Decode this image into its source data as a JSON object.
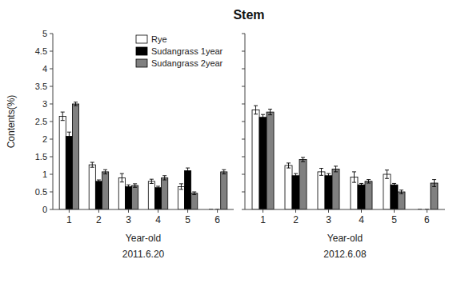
{
  "chart_data": [
    {
      "type": "bar",
      "title": "Stem",
      "ylabel": "Contents(%)",
      "xlabel": "Year-old",
      "annotations": [
        "2011.6.20"
      ],
      "categories": [
        "1",
        "2",
        "3",
        "4",
        "5",
        "6"
      ],
      "series": [
        {
          "name": "Rye",
          "color": "#ffffff",
          "values": [
            2.65,
            1.27,
            0.9,
            0.8,
            0.65,
            0.0
          ],
          "errors": [
            0.12,
            0.07,
            0.12,
            0.06,
            0.08,
            0.0
          ]
        },
        {
          "name": "Sudangrass 1year",
          "color": "#000000",
          "values": [
            2.08,
            0.8,
            0.65,
            0.62,
            1.1,
            0.0
          ],
          "errors": [
            0.12,
            0.04,
            0.05,
            0.04,
            0.08,
            0.0
          ]
        },
        {
          "name": "Sudangrass 2year",
          "color": "#808080",
          "values": [
            3.0,
            1.07,
            0.68,
            0.9,
            0.46,
            1.07
          ],
          "errors": [
            0.05,
            0.06,
            0.05,
            0.06,
            0.04,
            0.06
          ]
        }
      ],
      "ylim": [
        0,
        5
      ],
      "yticks": [
        0,
        0.5,
        1,
        1.5,
        2,
        2.5,
        3,
        3.5,
        4,
        4.5,
        5
      ],
      "legend": "upper right"
    },
    {
      "type": "bar",
      "xlabel": "Year-old",
      "annotations": [
        "2012.6.08"
      ],
      "categories": [
        "1",
        "2",
        "3",
        "4",
        "5",
        "6"
      ],
      "series": [
        {
          "color": "#ffffff",
          "values": [
            2.83,
            1.25,
            1.07,
            0.92,
            1.0,
            0.0
          ],
          "errors": [
            0.12,
            0.07,
            0.1,
            0.15,
            0.12,
            0.0
          ]
        },
        {
          "color": "#000000",
          "values": [
            2.62,
            0.96,
            0.96,
            0.7,
            0.7,
            0.0
          ],
          "errors": [
            0.08,
            0.06,
            0.06,
            0.04,
            0.04,
            0.0
          ]
        },
        {
          "color": "#808080",
          "values": [
            2.77,
            1.42,
            1.15,
            0.8,
            0.5,
            0.75
          ],
          "errors": [
            0.08,
            0.06,
            0.08,
            0.05,
            0.05,
            0.1
          ]
        }
      ],
      "ylim": [
        0,
        5
      ],
      "yticks": [
        0,
        0.5,
        1,
        1.5,
        2,
        2.5,
        3,
        3.5,
        4,
        4.5,
        5
      ],
      "tick_labels": "x"
    }
  ]
}
